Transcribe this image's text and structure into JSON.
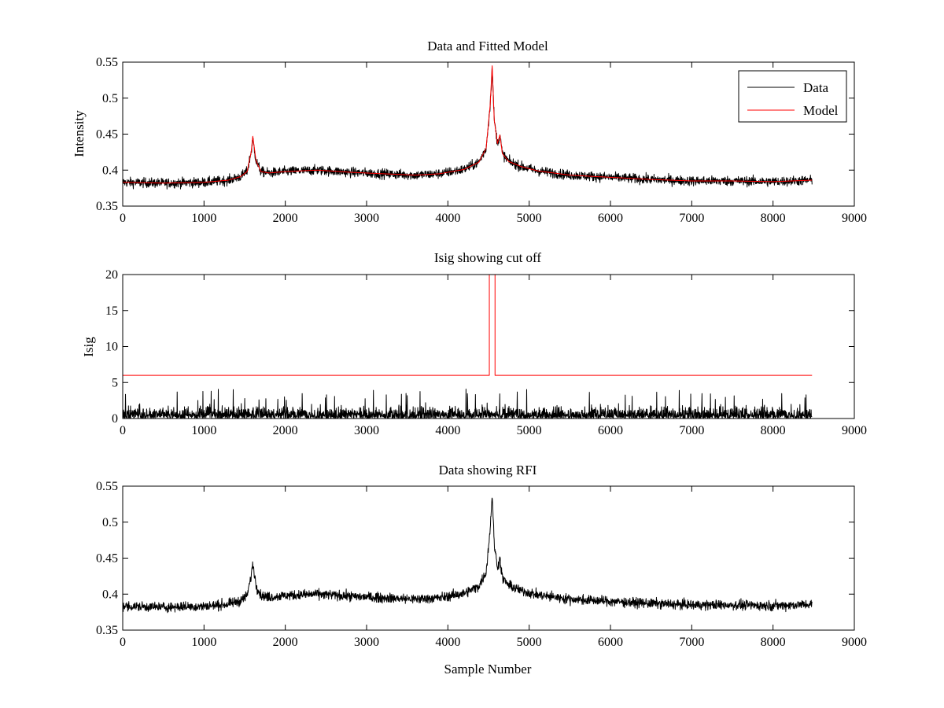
{
  "chart_data": [
    {
      "type": "line",
      "title": "Data and Fitted Model",
      "xlabel": "",
      "ylabel": "Intensity",
      "xlim": [
        0,
        9000
      ],
      "ylim": [
        0.35,
        0.55
      ],
      "xticks": [
        "0",
        "1000",
        "2000",
        "3000",
        "4000",
        "5000",
        "6000",
        "7000",
        "8000",
        "9000"
      ],
      "yticks": [
        "0.35",
        "0.4",
        "0.45",
        "0.5",
        "0.55"
      ],
      "grid": false,
      "legend": {
        "position": "top-right",
        "entries": [
          {
            "label": "Data",
            "color": "#000000"
          },
          {
            "label": "Model",
            "color": "#ff0000"
          }
        ]
      },
      "series": [
        {
          "name": "Data",
          "color": "#000000",
          "kind": "noisy",
          "noise_amplitude": 0.006,
          "x": [
            0,
            500,
            1000,
            1300,
            1450,
            1530,
            1580,
            1600,
            1640,
            1700,
            1800,
            2000,
            2400,
            2800,
            3200,
            3600,
            3900,
            4200,
            4380,
            4470,
            4520,
            4545,
            4570,
            4610,
            4640,
            4670,
            4750,
            4900,
            5100,
            5500,
            6000,
            6500,
            7000,
            7500,
            8000,
            8480
          ],
          "y": [
            0.383,
            0.382,
            0.383,
            0.386,
            0.391,
            0.398,
            0.425,
            0.443,
            0.413,
            0.398,
            0.396,
            0.398,
            0.4,
            0.397,
            0.395,
            0.393,
            0.395,
            0.401,
            0.411,
            0.43,
            0.49,
            0.542,
            0.47,
            0.437,
            0.449,
            0.423,
            0.412,
            0.405,
            0.399,
            0.393,
            0.39,
            0.387,
            0.385,
            0.385,
            0.384,
            0.386
          ]
        },
        {
          "name": "Model",
          "color": "#ff0000",
          "kind": "smooth",
          "x": [
            0,
            500,
            1000,
            1300,
            1450,
            1530,
            1580,
            1600,
            1640,
            1700,
            1800,
            2000,
            2400,
            2800,
            3200,
            3600,
            3900,
            4200,
            4380,
            4470,
            4520,
            4545,
            4570,
            4610,
            4640,
            4670,
            4750,
            4900,
            5100,
            5500,
            6000,
            6500,
            7000,
            7500,
            8000,
            8480
          ],
          "y": [
            0.383,
            0.382,
            0.383,
            0.386,
            0.391,
            0.398,
            0.425,
            0.447,
            0.413,
            0.398,
            0.396,
            0.398,
            0.4,
            0.397,
            0.395,
            0.393,
            0.395,
            0.401,
            0.411,
            0.43,
            0.49,
            0.545,
            0.47,
            0.437,
            0.449,
            0.423,
            0.412,
            0.405,
            0.399,
            0.393,
            0.39,
            0.387,
            0.385,
            0.385,
            0.384,
            0.386
          ]
        }
      ]
    },
    {
      "type": "line",
      "title": "Isig showing cut off",
      "xlabel": "",
      "ylabel": "Isig",
      "xlim": [
        0,
        9000
      ],
      "ylim": [
        0,
        20
      ],
      "xticks": [
        "0",
        "1000",
        "2000",
        "3000",
        "4000",
        "5000",
        "6000",
        "7000",
        "8000",
        "9000"
      ],
      "yticks": [
        "0",
        "5",
        "10",
        "15",
        "20"
      ],
      "grid": false,
      "series": [
        {
          "color": "#000000",
          "kind": "spikes",
          "mean": 0.8,
          "max_typical": 2.5,
          "max_spike": 4.2,
          "x_range": [
            0,
            8480
          ]
        },
        {
          "color": "#ff0000",
          "kind": "step",
          "x": [
            0,
            4510,
            4510,
            4580,
            4580,
            8480
          ],
          "y": [
            6,
            6,
            20,
            20,
            6,
            6
          ]
        }
      ]
    },
    {
      "type": "line",
      "title": "Data showing RFI",
      "xlabel": "Sample Number",
      "ylabel": "",
      "xlim": [
        0,
        9000
      ],
      "ylim": [
        0.35,
        0.55
      ],
      "xticks": [
        "0",
        "1000",
        "2000",
        "3000",
        "4000",
        "5000",
        "6000",
        "7000",
        "8000",
        "9000"
      ],
      "yticks": [
        "0.35",
        "0.4",
        "0.45",
        "0.5",
        "0.55"
      ],
      "grid": false,
      "series": [
        {
          "color": "#000000",
          "kind": "noisy",
          "noise_amplitude": 0.006,
          "x": [
            0,
            500,
            1000,
            1300,
            1450,
            1530,
            1580,
            1600,
            1640,
            1700,
            1800,
            2000,
            2400,
            2800,
            3200,
            3600,
            3900,
            4200,
            4380,
            4470,
            4520,
            4545,
            4570,
            4610,
            4640,
            4670,
            4750,
            4900,
            5100,
            5500,
            6000,
            6500,
            7000,
            7500,
            8000,
            8480
          ],
          "y": [
            0.383,
            0.382,
            0.383,
            0.386,
            0.391,
            0.398,
            0.425,
            0.443,
            0.413,
            0.398,
            0.396,
            0.398,
            0.4,
            0.397,
            0.395,
            0.393,
            0.395,
            0.401,
            0.411,
            0.43,
            0.49,
            0.54,
            0.47,
            0.437,
            0.449,
            0.423,
            0.412,
            0.405,
            0.399,
            0.393,
            0.39,
            0.387,
            0.385,
            0.385,
            0.384,
            0.386
          ]
        }
      ]
    }
  ]
}
